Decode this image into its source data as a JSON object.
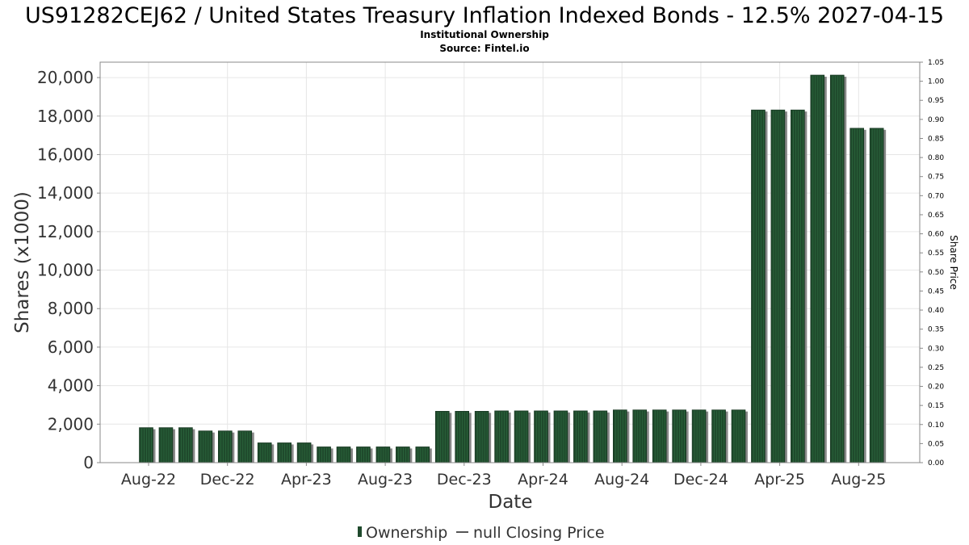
{
  "title": "US91282CEJ62 / United States Treasury Inflation Indexed Bonds - 12.5% 2027-04-15",
  "subtitle": "Institutional Ownership",
  "source": "Source: Fintel.io",
  "legend": {
    "ownership": "Ownership",
    "closing_price": "null Closing Price"
  },
  "colors": {
    "bar": "#1f4a2c",
    "bar_shadow": "#888888",
    "grid": "#e6e6e6",
    "frame": "#888888"
  },
  "chart_data": {
    "type": "bar",
    "title": "US91282CEJ62 / United States Treasury Inflation Indexed Bonds - 12.5% 2027-04-15",
    "xlabel": "Date",
    "ylabel": "Shares (x1000)",
    "y2label": "Share Price",
    "ylim": [
      0,
      20800
    ],
    "y2lim": [
      0,
      1.05
    ],
    "yticks": [
      "0",
      "2,000",
      "4,000",
      "6,000",
      "8,000",
      "10,000",
      "12,000",
      "14,000",
      "16,000",
      "18,000",
      "20,000"
    ],
    "y2ticks": [
      "0.00",
      "0.05",
      "0.10",
      "0.15",
      "0.20",
      "0.25",
      "0.30",
      "0.35",
      "0.40",
      "0.45",
      "0.50",
      "0.55",
      "0.60",
      "0.65",
      "0.70",
      "0.75",
      "0.80",
      "0.85",
      "0.90",
      "0.95",
      "1.00",
      "1.05"
    ],
    "xticks": [
      "Aug-22",
      "Dec-22",
      "Apr-23",
      "Aug-23",
      "Dec-23",
      "Apr-24",
      "Aug-24",
      "Dec-24",
      "Apr-25",
      "Aug-25"
    ],
    "grid": true,
    "legend_position": "bottom",
    "series": [
      {
        "name": "Ownership",
        "values": [
          1820,
          1820,
          1820,
          1650,
          1650,
          1650,
          1030,
          1030,
          1030,
          820,
          820,
          820,
          820,
          820,
          820,
          2670,
          2670,
          2670,
          2690,
          2690,
          2690,
          2690,
          2690,
          2690,
          2740,
          2740,
          2740,
          2740,
          2740,
          2740,
          2740,
          18320,
          18320,
          18320,
          20130,
          20130,
          17370,
          17370
        ]
      }
    ]
  }
}
